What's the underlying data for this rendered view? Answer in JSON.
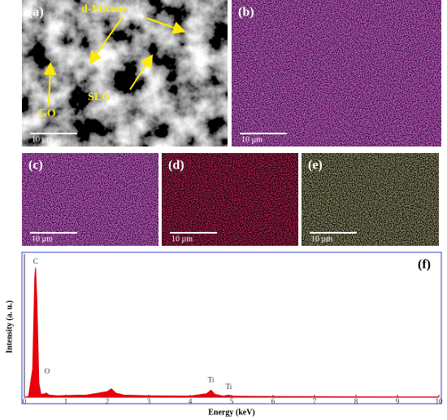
{
  "panels": [
    {
      "label": "(a)",
      "scale": "10 µm",
      "annotations": [
        "d-MXene",
        "GO",
        "SLG"
      ]
    },
    {
      "label": "(b)",
      "scale": "10 µm"
    },
    {
      "label": "(c)",
      "scale": "10 µm"
    },
    {
      "label": "(d)",
      "scale": "10 µm"
    },
    {
      "label": "(e)",
      "scale": "10 µm"
    }
  ],
  "chart_data": {
    "type": "area",
    "label": "(f)",
    "xlabel": "Energy (keV)",
    "ylabel": "Intensity (a. u.)",
    "color": "#e8000b",
    "x": [
      0,
      0.1,
      0.2,
      0.25,
      0.27,
      0.3,
      0.35,
      0.4,
      0.5,
      0.52,
      0.55,
      0.6,
      0.8,
      1.0,
      1.5,
      2.0,
      2.1,
      2.2,
      2.4,
      3,
      4,
      4.4,
      4.5,
      4.6,
      4.8,
      4.93,
      5.0,
      6,
      8,
      10
    ],
    "values": [
      0,
      0.5,
      20,
      85,
      92,
      70,
      10,
      2,
      2.5,
      3,
      2.5,
      1.5,
      1,
      1.2,
      1.5,
      4,
      6,
      3,
      1.5,
      1,
      0.8,
      2.5,
      5,
      2,
      0.8,
      1.5,
      0.7,
      0.5,
      0.3,
      0.2
    ],
    "xlim": [
      0,
      10
    ],
    "xticks": [
      0,
      1,
      2,
      3,
      4,
      5,
      6,
      7,
      8,
      9,
      10
    ],
    "ylim": [
      0,
      100
    ],
    "annotations": [
      {
        "text": "C",
        "x": 0.27,
        "y": 96
      },
      {
        "text": "O",
        "x": 0.55,
        "y": 18
      },
      {
        "text": "Ti",
        "x": 4.5,
        "y": 12
      },
      {
        "text": "Ti",
        "x": 4.93,
        "y": 7
      }
    ]
  }
}
